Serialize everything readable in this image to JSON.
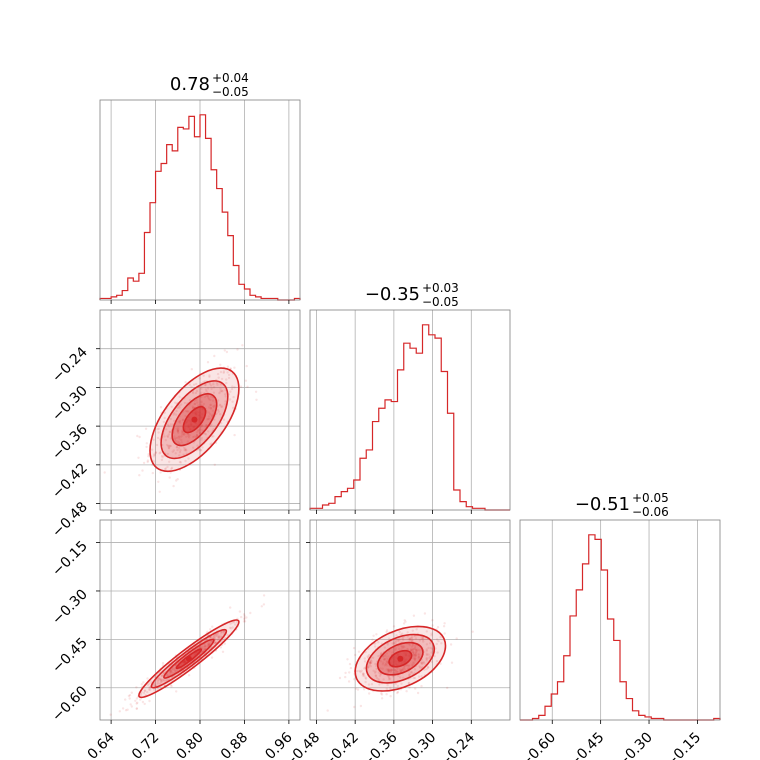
{
  "chart_data": {
    "type": "corner",
    "colors": {
      "series": "#d62728",
      "grid": "#b0b0b0",
      "frame": "#808080"
    },
    "grid": true,
    "parameters": [
      {
        "title_main": "0.78",
        "title_plus": "+0.04",
        "title_minus": "−0.05",
        "range": [
          0.62,
          0.98
        ],
        "ticks": [
          0.64,
          0.72,
          0.8,
          0.88,
          0.96
        ],
        "tick_labels": [
          "0.64",
          "0.72",
          "0.80",
          "0.88",
          "0.96"
        ]
      },
      {
        "title_main": "−0.35",
        "title_plus": "+0.03",
        "title_minus": "−0.05",
        "range": [
          -0.49,
          -0.18
        ],
        "ticks": [
          -0.48,
          -0.42,
          -0.36,
          -0.3,
          -0.24
        ],
        "tick_labels": [
          "−0.48",
          "−0.42",
          "−0.36",
          "−0.30",
          "−0.24"
        ]
      },
      {
        "title_main": "−0.51",
        "title_plus": "+0.05",
        "title_minus": "−0.06",
        "range": [
          -0.7,
          -0.08
        ],
        "ticks": [
          -0.6,
          -0.45,
          -0.3,
          -0.15
        ],
        "tick_labels": [
          "−0.60",
          "−0.45",
          "−0.30",
          "−0.15"
        ]
      }
    ],
    "histograms": [
      [
        1,
        1,
        2,
        3,
        6,
        14,
        12,
        17,
        43,
        62,
        82,
        87,
        99,
        95,
        110,
        109,
        117,
        104,
        118,
        103,
        83,
        71,
        56,
        41,
        22,
        10,
        7,
        3,
        2,
        1,
        1,
        1,
        0,
        0,
        0,
        1
      ],
      [
        1,
        1,
        3,
        4,
        8,
        11,
        13,
        18,
        31,
        36,
        53,
        61,
        66,
        65,
        84,
        100,
        97,
        94,
        111,
        105,
        103,
        83,
        58,
        12,
        5,
        2,
        1,
        1,
        0,
        0,
        0,
        0
      ],
      [
        0,
        0,
        1,
        3,
        9,
        17,
        25,
        42,
        68,
        85,
        102,
        121,
        118,
        98,
        66,
        52,
        25,
        14,
        6,
        3,
        2,
        1,
        1,
        0,
        0,
        0,
        0,
        0,
        0,
        0,
        0,
        1
      ]
    ],
    "scatter": [
      {
        "x": 0,
        "y": 1,
        "center": [
          0.79,
          -0.35
        ],
        "sigma": [
          0.04,
          0.04
        ],
        "rho": 0.6
      },
      {
        "x": 0,
        "y": 2,
        "center": [
          0.78,
          -0.51
        ],
        "sigma": [
          0.045,
          0.06
        ],
        "rho": 0.95
      },
      {
        "x": 1,
        "y": 2,
        "center": [
          -0.35,
          -0.51
        ],
        "sigma": [
          0.035,
          0.05
        ],
        "rho": 0.4
      }
    ]
  }
}
